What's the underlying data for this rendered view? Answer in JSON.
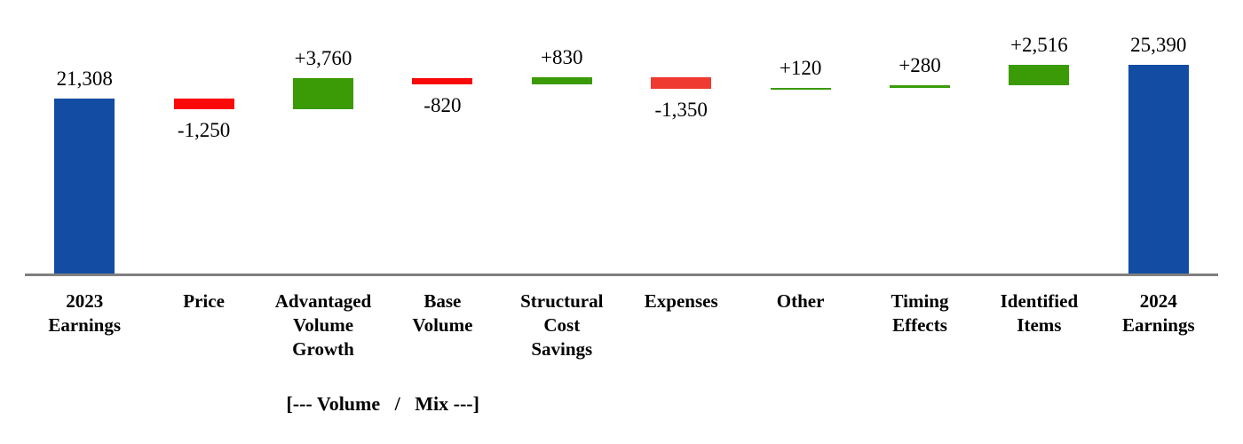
{
  "chart_data": {
    "type": "waterfall-bar",
    "orientation": "vertical",
    "gridlines": false,
    "legend": "none",
    "y_axis_visible": false,
    "baseline_axis_visible": true,
    "categories": [
      "2023 Earnings",
      "Price",
      "Advantaged Volume Growth",
      "Base Volume",
      "Structural Cost Savings",
      "Expenses",
      "Other",
      "Timing Effects",
      "Identified Items",
      "2024 Earnings"
    ],
    "items": [
      {
        "name": "2023 Earnings",
        "label_lines": [
          "2023",
          "Earnings"
        ],
        "value": 21308,
        "display": "21,308",
        "kind": "total",
        "color_key": "total"
      },
      {
        "name": "Price",
        "label_lines": [
          "Price"
        ],
        "value": -1250,
        "display": "-1,250",
        "kind": "delta",
        "color_key": "decrease"
      },
      {
        "name": "Advantaged Volume Growth",
        "label_lines": [
          "Advantaged",
          "Volume",
          "Growth"
        ],
        "value": 3760,
        "display": "+3,760",
        "kind": "delta",
        "color_key": "increase"
      },
      {
        "name": "Base Volume",
        "label_lines": [
          "Base",
          "Volume"
        ],
        "value": -820,
        "display": "-820",
        "kind": "delta",
        "color_key": "decrease"
      },
      {
        "name": "Structural Cost Savings",
        "label_lines": [
          "Structural",
          "Cost",
          "Savings"
        ],
        "value": 830,
        "display": "+830",
        "kind": "delta",
        "color_key": "increase"
      },
      {
        "name": "Expenses",
        "label_lines": [
          "Expenses"
        ],
        "value": -1350,
        "display": "-1,350",
        "kind": "delta",
        "color_key": "decrease_soft"
      },
      {
        "name": "Other",
        "label_lines": [
          "Other"
        ],
        "value": 120,
        "display": "+120",
        "kind": "delta",
        "color_key": "increase"
      },
      {
        "name": "Timing Effects",
        "label_lines": [
          "Timing",
          "Effects"
        ],
        "value": 280,
        "display": "+280",
        "kind": "delta",
        "color_key": "increase"
      },
      {
        "name": "Identified Items",
        "label_lines": [
          "Identified",
          "Items"
        ],
        "value": 2516,
        "display": "+2,516",
        "kind": "delta",
        "color_key": "increase"
      },
      {
        "name": "2024 Earnings",
        "label_lines": [
          "2024",
          "Earnings"
        ],
        "value": 25390,
        "display": "25,390",
        "kind": "total",
        "color_key": "total"
      }
    ],
    "annotation": {
      "text": "[--- Volume   /   Mix ---]",
      "spans_categories": [
        "Advantaged Volume Growth",
        "Base Volume"
      ]
    },
    "palette": {
      "total": "#134DA3",
      "increase": "#3A9B07",
      "decrease": "#FB0808",
      "decrease_soft": "#EE3A30",
      "axis": "#7F7F7F",
      "text": "#000000"
    }
  }
}
